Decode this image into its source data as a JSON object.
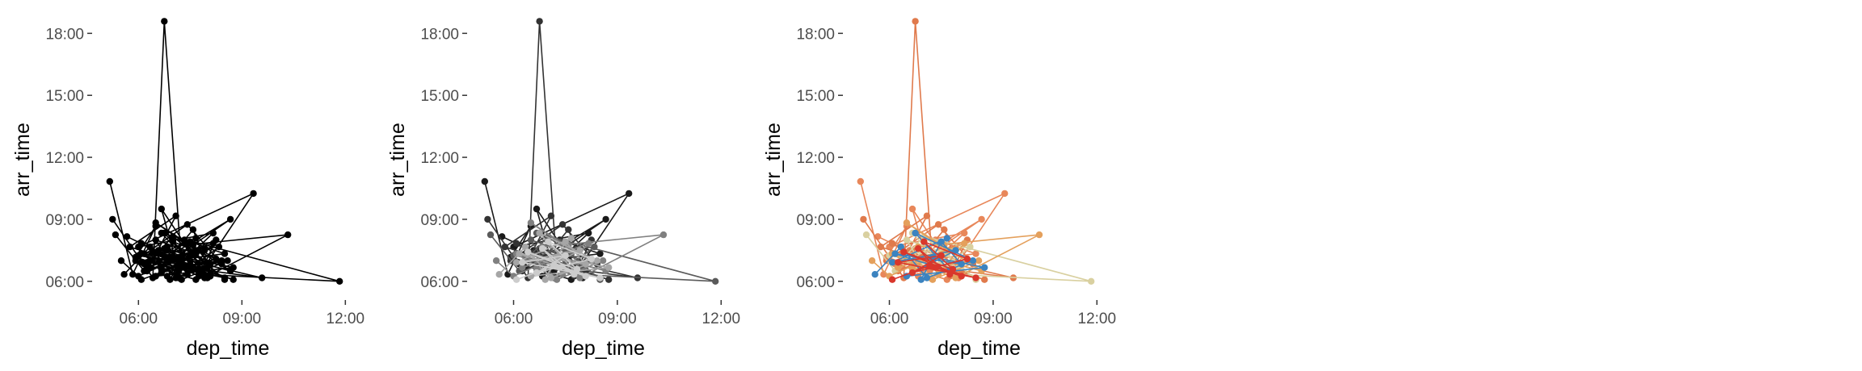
{
  "chart_data": [
    {
      "type": "line",
      "xlabel": "dep_time",
      "ylabel": "arr_time",
      "x_ticks": [
        "06:00",
        "09:00",
        "12:00"
      ],
      "y_ticks": [
        "06:00",
        "09:00",
        "12:00",
        "15:00",
        "18:00"
      ],
      "xlim": [
        "04:45",
        "12:15"
      ],
      "ylim": [
        "05:15",
        "18:50"
      ],
      "grid": false,
      "legend": "none",
      "series_colors": [
        "#000000",
        "#000000",
        "#000000",
        "#000000",
        "#000000",
        "#000000"
      ],
      "series": [
        {
          "x": [
            "05:10",
            "05:50",
            "06:30",
            "05:55",
            "07:10",
            "06:40",
            "08:00",
            "07:20",
            "08:30",
            "06:10",
            "07:40",
            "09:20",
            "06:00",
            "08:10",
            "06:50",
            "07:30",
            "06:20",
            "08:40",
            "07:00",
            "05:40",
            "07:50",
            "06:35"
          ],
          "y": [
            "10:50",
            "06:20",
            "08:40",
            "07:10",
            "06:30",
            "09:30",
            "06:10",
            "08:00",
            "07:20",
            "06:50",
            "06:05",
            "10:15",
            "07:40",
            "08:20",
            "06:15",
            "07:50",
            "06:40",
            "09:00",
            "07:05",
            "08:10",
            "06:25",
            "07:30"
          ]
        },
        {
          "x": [
            "05:15",
            "06:25",
            "06:45",
            "07:15",
            "06:05",
            "08:05",
            "07:35",
            "06:55",
            "08:45",
            "05:45",
            "07:05",
            "06:15",
            "08:15",
            "07:45",
            "06:35",
            "09:35",
            "05:55",
            "07:25",
            "08:25",
            "06:45"
          ],
          "y": [
            "09:00",
            "06:10",
            "18:35",
            "06:40",
            "07:50",
            "06:20",
            "08:30",
            "07:10",
            "06:05",
            "07:40",
            "09:10",
            "06:30",
            "08:00",
            "06:15",
            "07:20",
            "06:10",
            "07:00",
            "08:45",
            "06:50",
            "07:35"
          ]
        },
        {
          "x": [
            "05:20",
            "06:10",
            "07:20",
            "08:30",
            "07:00",
            "06:20",
            "08:00",
            "06:50",
            "07:50",
            "11:50",
            "06:40",
            "07:30",
            "06:00",
            "08:20",
            "07:10",
            "06:30",
            "07:40"
          ],
          "y": [
            "08:15",
            "06:30",
            "07:50",
            "06:05",
            "08:10",
            "07:00",
            "06:40",
            "07:30",
            "06:20",
            "06:00",
            "08:20",
            "06:50",
            "07:15",
            "07:40",
            "06:10",
            "08:00",
            "07:20"
          ]
        },
        {
          "x": [
            "05:30",
            "06:00",
            "07:40",
            "06:30",
            "08:40",
            "07:10",
            "06:15",
            "08:10",
            "07:25",
            "06:50",
            "10:20",
            "07:55",
            "06:05",
            "07:15",
            "08:35",
            "06:40",
            "07:35"
          ],
          "y": [
            "07:00",
            "06:15",
            "07:30",
            "08:50",
            "06:30",
            "07:10",
            "06:40",
            "07:50",
            "06:20",
            "07:40",
            "08:15",
            "06:10",
            "07:20",
            "06:05",
            "07:00",
            "06:35",
            "07:45"
          ]
        },
        {
          "x": [
            "05:35",
            "06:20",
            "07:05",
            "08:25",
            "06:45",
            "07:45",
            "06:10",
            "08:05",
            "07:30",
            "06:55",
            "07:15",
            "08:45",
            "06:30",
            "07:55",
            "06:05",
            "07:40"
          ],
          "y": [
            "06:20",
            "07:40",
            "06:10",
            "07:00",
            "08:20",
            "06:30",
            "07:20",
            "06:50",
            "07:55",
            "06:05",
            "07:10",
            "06:40",
            "06:15",
            "07:30",
            "06:55",
            "08:05"
          ]
        },
        {
          "x": [
            "06:05",
            "07:10",
            "08:05",
            "06:25",
            "07:50",
            "07:00",
            "08:15",
            "06:40",
            "07:30",
            "06:15",
            "08:30",
            "07:20",
            "06:50",
            "07:45"
          ],
          "y": [
            "06:05",
            "06:45",
            "06:15",
            "07:25",
            "06:35",
            "07:55",
            "07:05",
            "06:25",
            "07:15",
            "06:55",
            "06:10",
            "06:40",
            "07:35",
            "06:20"
          ]
        }
      ]
    },
    {
      "type": "line",
      "xlabel": "dep_time",
      "ylabel": "arr_time",
      "x_ticks": [
        "06:00",
        "09:00",
        "12:00"
      ],
      "y_ticks": [
        "06:00",
        "09:00",
        "12:00",
        "15:00",
        "18:00"
      ],
      "xlim": [
        "04:45",
        "12:15"
      ],
      "ylim": [
        "05:15",
        "18:50"
      ],
      "grid": false,
      "legend": "none",
      "series_colors": [
        "#1a1a1a",
        "#333333",
        "#5a5a5a",
        "#808080",
        "#a6a6a6",
        "#cccccc"
      ],
      "same_series_as_panel": 1
    },
    {
      "type": "line",
      "xlabel": "dep_time",
      "ylabel": "arr_time",
      "x_ticks": [
        "06:00",
        "09:00",
        "12:00"
      ],
      "y_ticks": [
        "06:00",
        "09:00",
        "12:00",
        "15:00",
        "18:00"
      ],
      "xlim": [
        "04:45",
        "12:15"
      ],
      "ylim": [
        "05:15",
        "18:50"
      ],
      "grid": false,
      "legend": "none",
      "series_colors": [
        "#e8875a",
        "#e07a4c",
        "#d9d0a0",
        "#e4a05c",
        "#3b83c0",
        "#d9372c"
      ],
      "extra_series_colors": [
        "#a8a89e",
        "#7aa0bf"
      ],
      "same_series_as_panel": 1
    }
  ]
}
